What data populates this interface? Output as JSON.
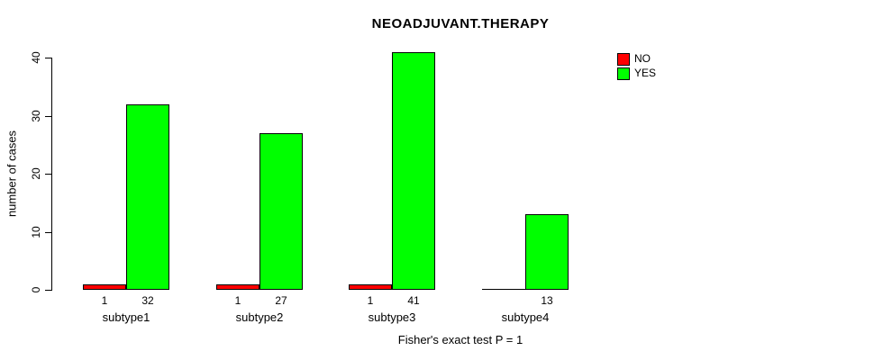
{
  "title": "NEOADJUVANT.THERAPY",
  "caption": "Fisher's exact test P = 1",
  "colors": {
    "no": "#ff0000",
    "yes": "#00ff00",
    "axis": "#000000",
    "background": "#ffffff"
  },
  "legend": {
    "items": [
      {
        "label": "NO",
        "color": "#ff0000"
      },
      {
        "label": "YES",
        "color": "#00ff00"
      }
    ]
  },
  "chart_data": {
    "type": "bar",
    "categories": [
      "subtype1",
      "subtype2",
      "subtype3",
      "subtype4"
    ],
    "series": [
      {
        "name": "NO",
        "color": "#ff0000",
        "values": [
          1,
          1,
          1,
          0
        ]
      },
      {
        "name": "YES",
        "color": "#00ff00",
        "values": [
          32,
          27,
          41,
          13
        ]
      }
    ],
    "bar_value_labels": [
      [
        "1",
        "32"
      ],
      [
        "1",
        "27"
      ],
      [
        "1",
        "41"
      ],
      [
        "",
        "13"
      ]
    ],
    "title": "NEOADJUVANT.THERAPY",
    "xlabel": "Fisher's exact test P = 1",
    "ylabel": "number of cases",
    "ylim": [
      0,
      40
    ],
    "yticks": [
      0,
      10,
      20,
      30,
      40
    ],
    "grid": false,
    "legend_position": "top-right"
  }
}
